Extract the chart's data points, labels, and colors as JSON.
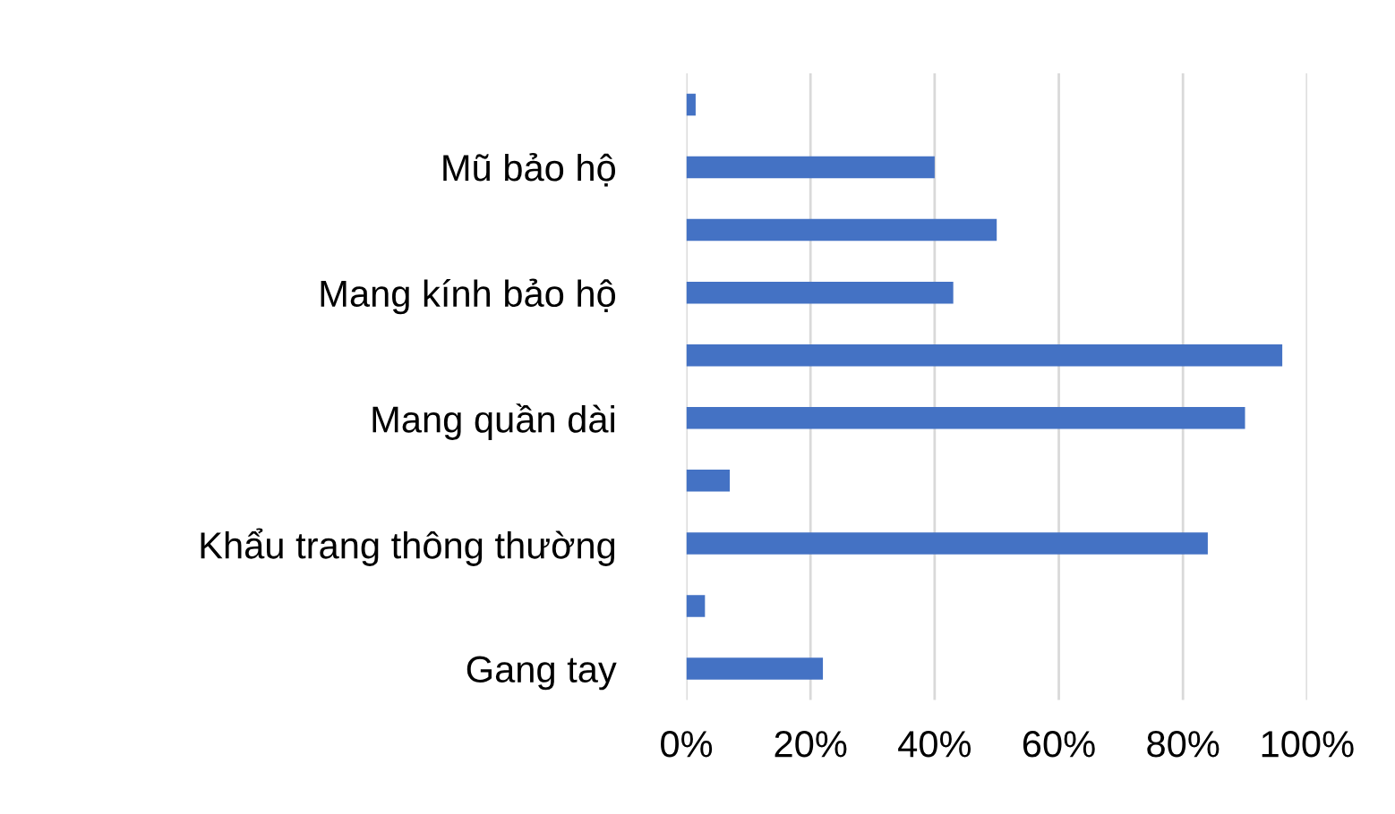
{
  "chart_data": {
    "type": "bar",
    "orientation": "horizontal",
    "categories": [
      null,
      "Mũ bảo hộ",
      null,
      "Mang kính bảo hộ",
      null,
      "Mang quần dài",
      null,
      "Khẩu trang thông thường",
      null,
      "Gang tay"
    ],
    "values": [
      1.5,
      40,
      50,
      43,
      96,
      90,
      7,
      84,
      3,
      22
    ],
    "color": "#4472c4",
    "xlim": [
      0,
      100
    ],
    "xticks": [
      {
        "value": 0,
        "label": "0%"
      },
      {
        "value": 20,
        "label": "20%"
      },
      {
        "value": 40,
        "label": "40%"
      },
      {
        "value": 60,
        "label": "60%"
      },
      {
        "value": 80,
        "label": "80%"
      },
      {
        "value": 100,
        "label": "100%"
      }
    ],
    "grid": "x"
  }
}
